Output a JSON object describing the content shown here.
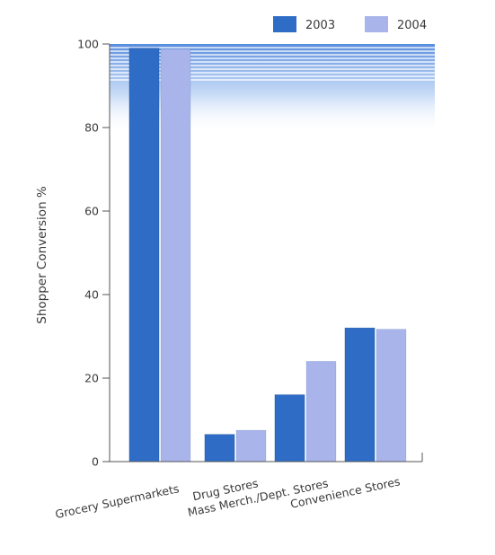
{
  "chart_data": {
    "type": "bar",
    "title": "",
    "xlabel": "",
    "ylabel": "Shopper Conversion %",
    "ylim": [
      0,
      100
    ],
    "yticks": [
      0,
      20,
      40,
      60,
      80,
      100
    ],
    "categories": [
      "Grocery Supermarkets",
      "Drug Stores",
      "Mass Merch./Dept. Stores",
      "Convenience Stores"
    ],
    "series": [
      {
        "name": "2003",
        "color": "#2f6cc6",
        "values": [
          99,
          6.5,
          16,
          32
        ]
      },
      {
        "name": "2004",
        "color": "#a9b4ea",
        "values": [
          98.8,
          7.5,
          24,
          31.7
        ]
      }
    ],
    "legend_position": "top-right",
    "grid": false,
    "colors": {
      "axis": "#555555",
      "background_band_top": "#5a8fe0",
      "background_band_bottom": "#ffffff",
      "text": "#3a3a3a"
    }
  }
}
